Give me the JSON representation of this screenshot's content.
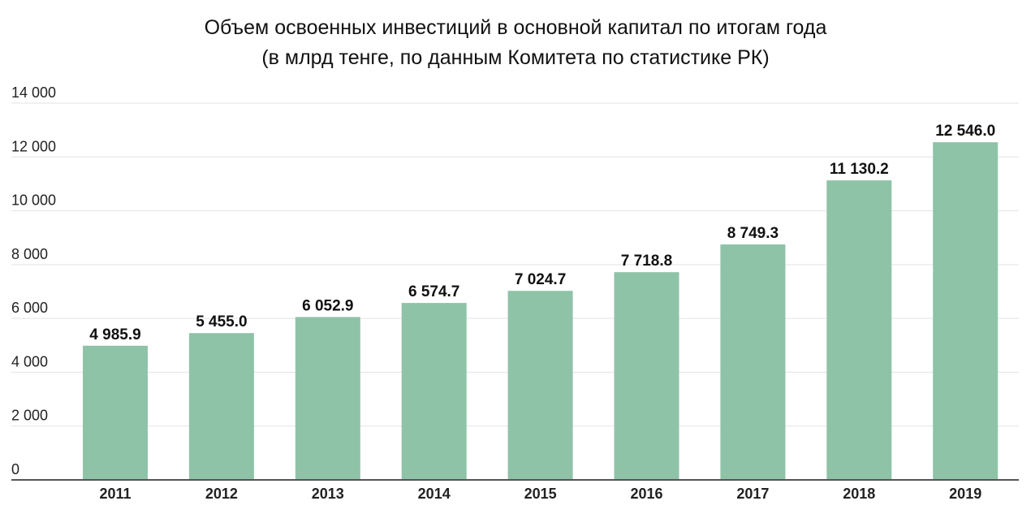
{
  "chart_data": {
    "type": "bar",
    "title": "Объем освоенных инвестиций в основной капитал по итогам года",
    "subtitle": "(в млрд тенге, по данным Комитета по статистике РК)",
    "categories": [
      "2011",
      "2012",
      "2013",
      "2014",
      "2015",
      "2016",
      "2017",
      "2018",
      "2019"
    ],
    "values": [
      4985.9,
      5455.0,
      6052.9,
      6574.7,
      7024.7,
      7718.8,
      8749.3,
      11130.2,
      12546.0
    ],
    "value_labels": [
      "4 985.9",
      "5 455.0",
      "6 052.9",
      "6 574.7",
      "7 024.7",
      "7 718.8",
      "8 749.3",
      "11 130.2",
      "12 546.0"
    ],
    "yticks": [
      0,
      2000,
      4000,
      6000,
      8000,
      10000,
      12000,
      14000
    ],
    "ytick_labels": [
      "0",
      "2 000",
      "4 000",
      "6 000",
      "8 000",
      "10 000",
      "12 000",
      "14 000"
    ],
    "ylim": [
      0,
      14000
    ],
    "xlabel": "",
    "ylabel": "",
    "grid": true,
    "legend": "none",
    "bar_color": "#8fc3a8",
    "grid_color": "#e3e3e3",
    "axis_color": "#555555"
  }
}
